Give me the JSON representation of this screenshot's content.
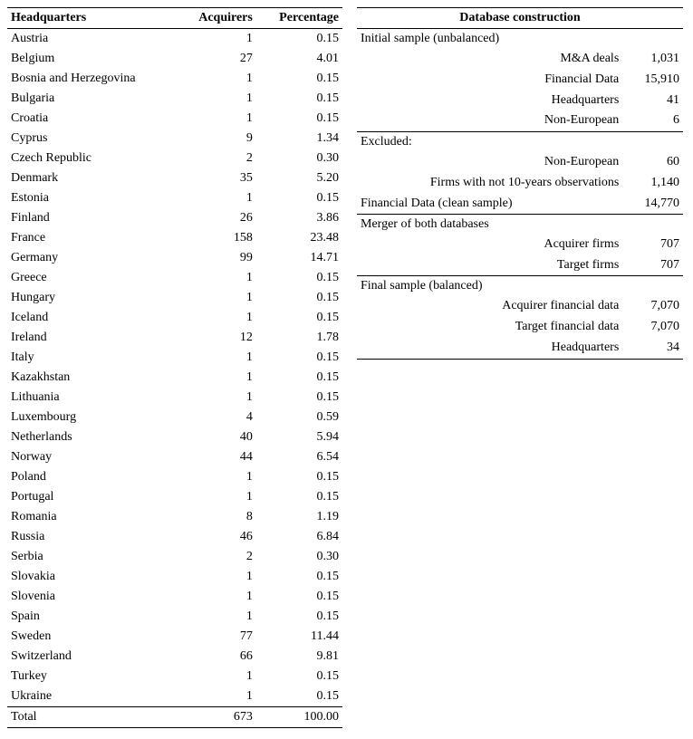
{
  "left": {
    "headers": [
      "Headquarters",
      "Acquirers",
      "Percentage"
    ],
    "rows": [
      [
        "Austria",
        "1",
        "0.15"
      ],
      [
        "Belgium",
        "27",
        "4.01"
      ],
      [
        "Bosnia and Herzegovina",
        "1",
        "0.15"
      ],
      [
        "Bulgaria",
        "1",
        "0.15"
      ],
      [
        "Croatia",
        "1",
        "0.15"
      ],
      [
        "Cyprus",
        "9",
        "1.34"
      ],
      [
        "Czech Republic",
        "2",
        "0.30"
      ],
      [
        "Denmark",
        "35",
        "5.20"
      ],
      [
        "Estonia",
        "1",
        "0.15"
      ],
      [
        "Finland",
        "26",
        "3.86"
      ],
      [
        "France",
        "158",
        "23.48"
      ],
      [
        "Germany",
        "99",
        "14.71"
      ],
      [
        "Greece",
        "1",
        "0.15"
      ],
      [
        "Hungary",
        "1",
        "0.15"
      ],
      [
        "Iceland",
        "1",
        "0.15"
      ],
      [
        "Ireland",
        "12",
        "1.78"
      ],
      [
        "Italy",
        "1",
        "0.15"
      ],
      [
        "Kazakhstan",
        "1",
        "0.15"
      ],
      [
        "Lithuania",
        "1",
        "0.15"
      ],
      [
        "Luxembourg",
        "4",
        "0.59"
      ],
      [
        "Netherlands",
        "40",
        "5.94"
      ],
      [
        "Norway",
        "44",
        "6.54"
      ],
      [
        "Poland",
        "1",
        "0.15"
      ],
      [
        "Portugal",
        "1",
        "0.15"
      ],
      [
        "Romania",
        "8",
        "1.19"
      ],
      [
        "Russia",
        "46",
        "6.84"
      ],
      [
        "Serbia",
        "2",
        "0.30"
      ],
      [
        "Slovakia",
        "1",
        "0.15"
      ],
      [
        "Slovenia",
        "1",
        "0.15"
      ],
      [
        "Spain",
        "1",
        "0.15"
      ],
      [
        "Sweden",
        "77",
        "11.44"
      ],
      [
        "Switzerland",
        "66",
        "9.81"
      ],
      [
        "Turkey",
        "1",
        "0.15"
      ],
      [
        "Ukraine",
        "1",
        "0.15"
      ]
    ],
    "total": [
      "Total",
      "673",
      "100.00"
    ]
  },
  "right": {
    "header": "Database construction",
    "sections": [
      {
        "title": "Initial sample (unbalanced)",
        "rows": [
          [
            "M&A deals",
            "1,031"
          ],
          [
            "Financial Data",
            "15,910"
          ],
          [
            "Headquarters",
            "41"
          ],
          [
            "Non-European",
            "6"
          ]
        ],
        "border_after": true
      },
      {
        "title": "Excluded:",
        "rows": [
          [
            "Non-European",
            "60"
          ],
          [
            "Firms with not 10-years observations",
            "1,140"
          ]
        ],
        "border_after": false
      },
      {
        "title": "Financial Data (clean sample)",
        "title_value": "14,770",
        "rows": [],
        "border_after": true
      },
      {
        "title": "Merger of both databases",
        "rows": [
          [
            "Acquirer firms",
            "707"
          ],
          [
            "Target firms",
            "707"
          ]
        ],
        "border_after": true
      },
      {
        "title": "Final sample (balanced)",
        "rows": [
          [
            "Acquirer financial data",
            "7,070"
          ],
          [
            "Target financial data",
            "7,070"
          ],
          [
            "Headquarters",
            "34"
          ]
        ],
        "border_after": true
      }
    ]
  }
}
